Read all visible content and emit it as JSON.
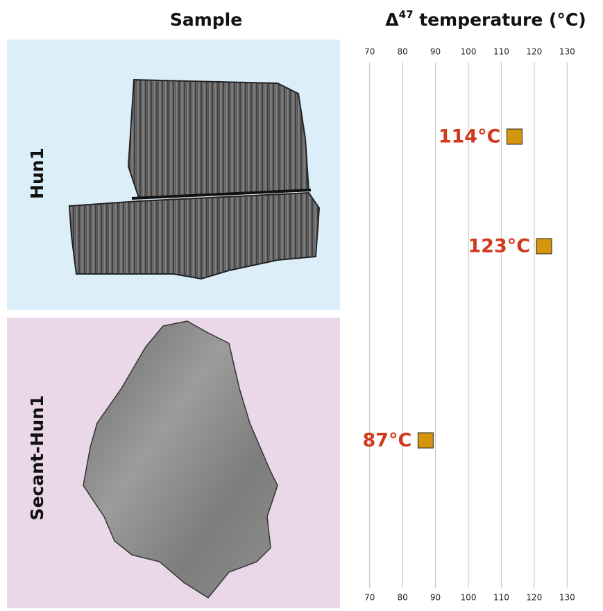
{
  "chart_data": {
    "type": "dot",
    "sample_heading": "Sample",
    "axis_title": {
      "symbol": "Δ",
      "superscript": "47",
      "text": " temperature (°C)"
    },
    "panels": [
      {
        "label": "Hun1",
        "color": "#dceefa"
      },
      {
        "label": "Secant-Hun1",
        "color": "#ead8e8"
      }
    ],
    "values": [
      114,
      123,
      87
    ],
    "value_labels": [
      "114°C",
      "123°C",
      "87°C"
    ],
    "color": "#d4960f",
    "label_color": "#d0391e",
    "xlim": [
      65,
      135
    ],
    "xticks": [
      70,
      80,
      90,
      100,
      110,
      120,
      130
    ],
    "grid": true
  }
}
